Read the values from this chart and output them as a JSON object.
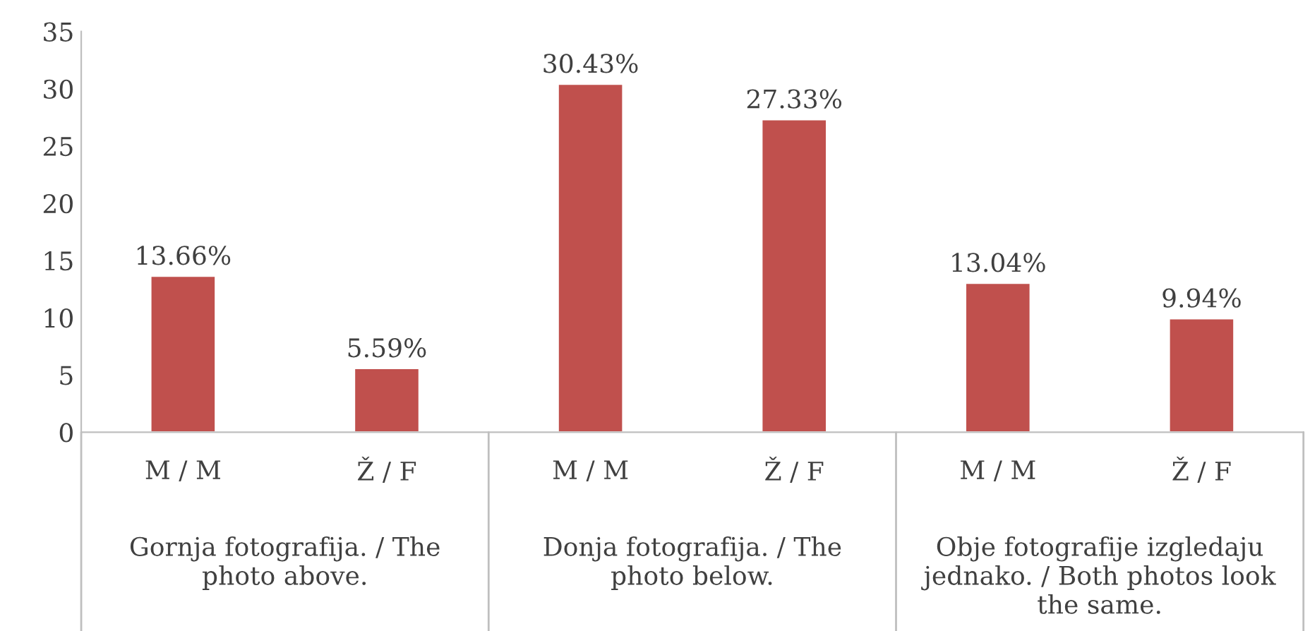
{
  "chart_data": {
    "type": "bar",
    "categories": [
      "M / M",
      "Ž / F",
      "M / M",
      "Ž / F",
      "M / M",
      "Ž / F"
    ],
    "values": [
      13.66,
      5.59,
      30.43,
      27.33,
      13.04,
      9.94
    ],
    "value_labels": [
      "13.66%",
      "5.59%",
      "30.43%",
      "27.33%",
      "13.04%",
      "9.94%"
    ],
    "color": "#c0504d",
    "ylim": [
      0,
      35
    ],
    "yticks": [
      0,
      5,
      10,
      15,
      20,
      25,
      30,
      35
    ],
    "grid": false,
    "annotations": [
      "Gornja fotografija. / The\nphoto above.",
      "Donja fotografija. / The\nphoto below.",
      "Obje fotografije izgledaju\njednako. / Both photos look\nthe same."
    ]
  }
}
